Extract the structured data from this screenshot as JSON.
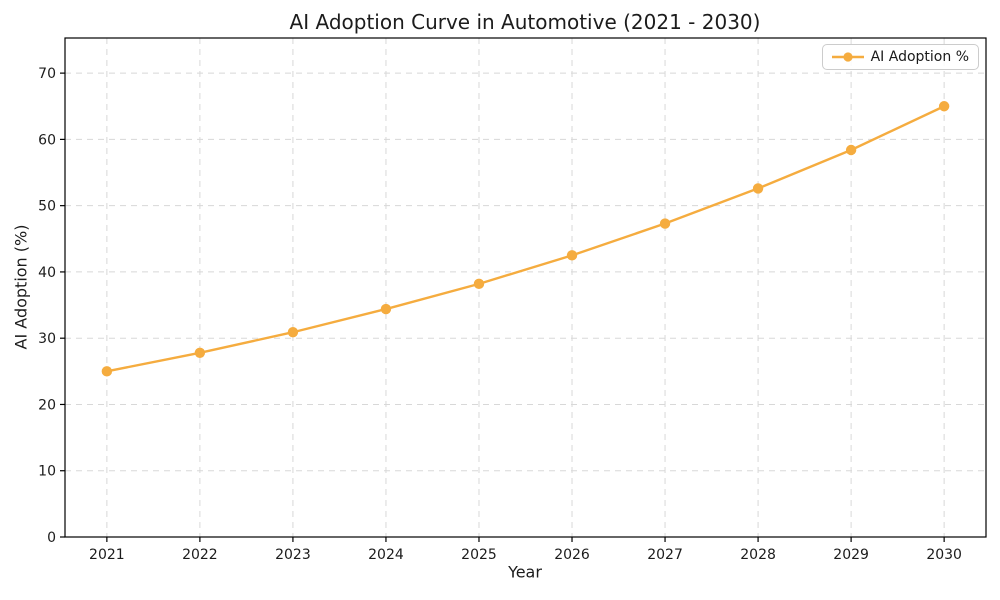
{
  "chart_data": {
    "type": "line",
    "title": "AI Adoption Curve in Automotive (2021 - 2030)",
    "xlabel": "Year",
    "ylabel": "AI Adoption (%)",
    "categories": [
      "2021",
      "2022",
      "2023",
      "2024",
      "2025",
      "2026",
      "2027",
      "2028",
      "2029",
      "2030"
    ],
    "series": [
      {
        "name": "AI Adoption %",
        "values": [
          25.0,
          27.8,
          30.9,
          34.4,
          38.2,
          42.5,
          47.3,
          52.6,
          58.4,
          65.0
        ],
        "color": "#F5AC3F",
        "marker": "circle",
        "line_style": "solid"
      }
    ],
    "ylim": [
      0,
      75.3
    ],
    "yticks": [
      0,
      10,
      20,
      30,
      40,
      50,
      60,
      70
    ],
    "grid": {
      "visible": true,
      "style": "dashed",
      "color": "#D8D8D8"
    },
    "legend": {
      "position": "upper-right"
    },
    "colors": {
      "background": "#FFFFFF",
      "spine": "#000000",
      "tick_text": "#1C1C1C",
      "title_text": "#1C1C1C"
    }
  }
}
